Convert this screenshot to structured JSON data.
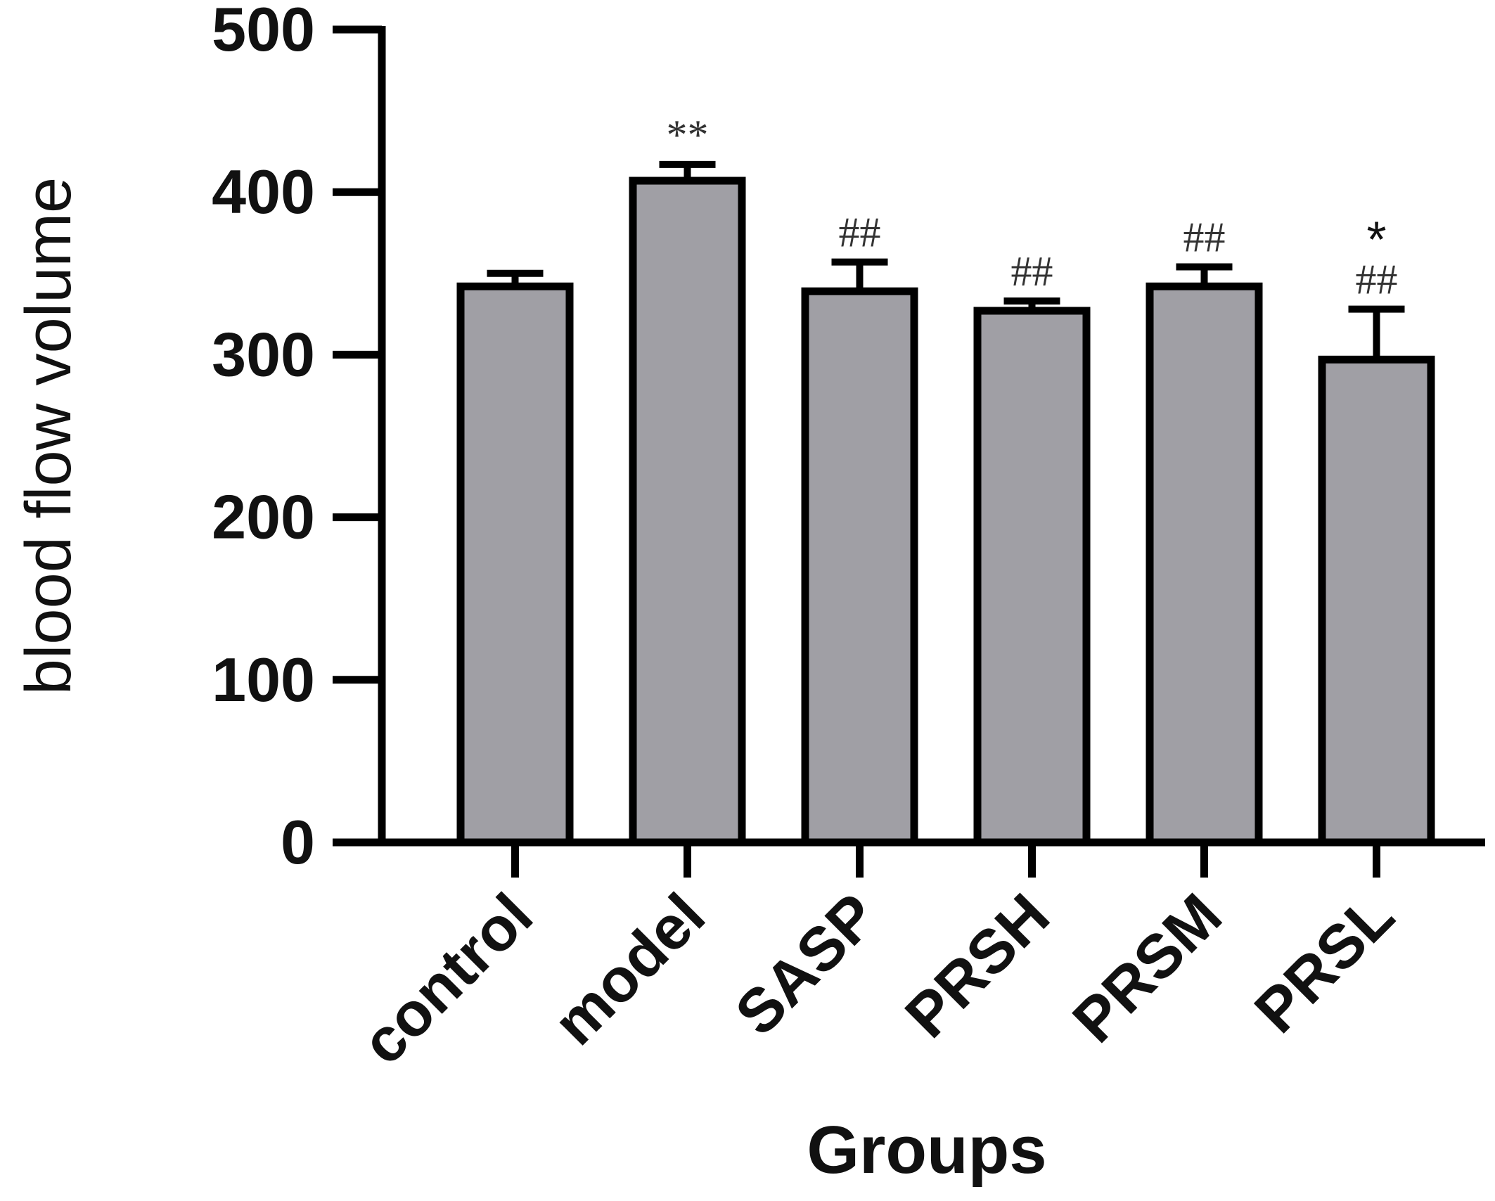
{
  "chart_data": {
    "type": "bar",
    "ylabel": "blood flow volume",
    "xlabel": "Groups",
    "ylim": [
      0,
      500
    ],
    "yticks": [
      "0",
      "100",
      "200",
      "300",
      "400",
      "500"
    ],
    "categories": [
      "control",
      "model",
      "SASP",
      "PRSH",
      "PRSM",
      "PRSL"
    ],
    "values": [
      342,
      407,
      339,
      327,
      342,
      297
    ],
    "errors": [
      8,
      10,
      18,
      6,
      12,
      31
    ],
    "annotations": [
      [],
      [
        "**"
      ],
      [
        "##"
      ],
      [
        "##"
      ],
      [
        "##"
      ],
      [
        "##",
        "*"
      ]
    ],
    "bar_color": "#a09fa5",
    "edge_color": "#000000",
    "grid": false
  }
}
